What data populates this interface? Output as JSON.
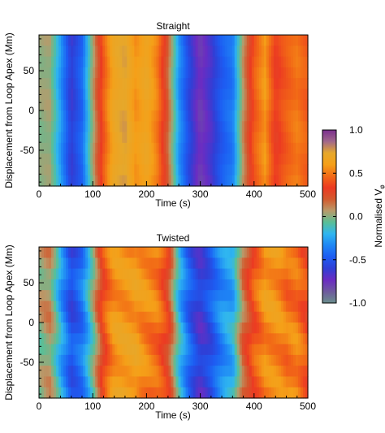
{
  "colors": {
    "colormap": [
      "#6a8f8c",
      "#6e5a9e",
      "#6b2cc2",
      "#2f3fd6",
      "#1d5cf2",
      "#1e86f5",
      "#2fb6f0",
      "#59bf96",
      "#b99a6a",
      "#d35a2e",
      "#ec3a22",
      "#f26a16",
      "#f5a018",
      "#e6a82b",
      "#a1688b",
      "#7a2f8f"
    ],
    "axis": "#000000"
  },
  "chart_data": [
    {
      "type": "heatmap",
      "title": "Straight",
      "xlabel": "Time (s)",
      "ylabel": "Displacement from Loop Apex (Mm)",
      "xlim": [
        0,
        500
      ],
      "ylim": [
        -95,
        95
      ],
      "xticks": [
        "0",
        "100",
        "200",
        "300",
        "400",
        "500"
      ],
      "yticks": [
        "-50",
        "0",
        "50"
      ],
      "x": [
        0,
        20,
        40,
        60,
        80,
        100,
        120,
        140,
        160,
        180,
        200,
        220,
        240,
        260,
        280,
        300,
        320,
        340,
        360,
        380,
        400,
        420,
        440,
        460,
        480,
        500
      ],
      "values_vs_time": [
        0.0,
        0.0,
        -0.3,
        -0.6,
        -0.4,
        0.05,
        0.4,
        0.65,
        0.75,
        0.6,
        0.7,
        0.5,
        0.15,
        -0.3,
        -0.55,
        -0.75,
        -0.65,
        -0.5,
        -0.4,
        0.1,
        0.45,
        0.6,
        0.3,
        0.4,
        0.5,
        0.45
      ]
    },
    {
      "type": "heatmap",
      "title": "Twisted",
      "xlabel": "Time (s)",
      "ylabel": "Displacement from Loop Apex (Mm)",
      "xlim": [
        0,
        500
      ],
      "ylim": [
        -95,
        95
      ],
      "xticks": [
        "0",
        "100",
        "200",
        "300",
        "400",
        "500"
      ],
      "yticks": [
        "-50",
        "0",
        "50"
      ],
      "x": [
        0,
        20,
        40,
        60,
        80,
        100,
        120,
        140,
        160,
        180,
        200,
        220,
        240,
        260,
        280,
        300,
        320,
        340,
        360,
        380,
        400,
        420,
        440,
        460,
        480,
        500
      ],
      "values_vs_time": [
        0.0,
        0.0,
        -0.3,
        -0.5,
        -0.3,
        0.0,
        0.3,
        0.5,
        0.6,
        0.7,
        0.6,
        0.45,
        0.2,
        -0.2,
        -0.4,
        -0.55,
        -0.5,
        -0.4,
        -0.3,
        0.2,
        0.5,
        0.6,
        0.5,
        0.4,
        0.5,
        0.45
      ]
    }
  ],
  "colorbar": {
    "label": "Normalised V",
    "label_subscript": "φ",
    "range": [
      -1.0,
      1.0
    ],
    "ticks": [
      "1.0",
      "0.5",
      "0.0",
      "-0.5",
      "-1.0"
    ]
  }
}
